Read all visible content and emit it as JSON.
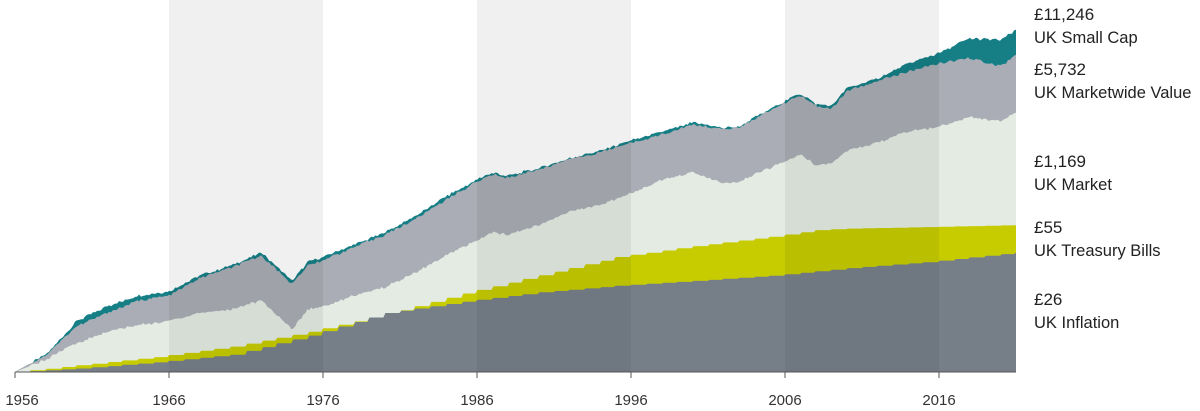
{
  "chart_data": {
    "type": "area",
    "x_ticks": [
      "1956",
      "1966",
      "1976",
      "1986",
      "1996",
      "2006",
      "2016"
    ],
    "xlim": [
      1956,
      2021
    ],
    "series": [
      {
        "name": "UK Small Cap",
        "ending_value": "£11,246",
        "color": "#167f86",
        "x": [
          1956,
          1958,
          1960,
          1962,
          1964,
          1966,
          1968,
          1970,
          1972,
          1974,
          1975,
          1976,
          1978,
          1980,
          1982,
          1984,
          1986,
          1987,
          1988,
          1990,
          1992,
          1994,
          1996,
          1998,
          2000,
          2002,
          2003,
          2005,
          2007,
          2008,
          2009,
          2010,
          2012,
          2014,
          2016,
          2018,
          2020,
          2021
        ],
        "values": [
          1,
          1.6,
          4,
          6,
          8,
          9,
          14,
          18,
          26,
          12,
          20,
          23,
          32,
          45,
          70,
          120,
          190,
          230,
          210,
          260,
          340,
          420,
          550,
          700,
          900,
          780,
          800,
          1300,
          2000,
          1500,
          1400,
          2300,
          3000,
          4500,
          6000,
          9000,
          8500,
          11246
        ]
      },
      {
        "name": "UK Marketwide Value",
        "ending_value": "£5,732",
        "color": "#aaadb5",
        "x": [
          1956,
          1958,
          1960,
          1962,
          1964,
          1966,
          1968,
          1970,
          1972,
          1974,
          1975,
          1976,
          1978,
          1980,
          1982,
          1984,
          1986,
          1987,
          1988,
          1990,
          1992,
          1994,
          1996,
          1998,
          2000,
          2002,
          2003,
          2005,
          2007,
          2008,
          2009,
          2010,
          2012,
          2014,
          2016,
          2018,
          2020,
          2021
        ],
        "values": [
          1,
          1.6,
          3.5,
          5,
          7,
          8,
          13,
          17,
          24,
          11,
          18,
          21,
          30,
          42,
          65,
          110,
          180,
          220,
          200,
          250,
          330,
          400,
          520,
          650,
          850,
          750,
          780,
          1250,
          1900,
          1400,
          1300,
          2100,
          2800,
          3600,
          4500,
          5200,
          4200,
          5732
        ]
      },
      {
        "name": "UK Market",
        "ending_value": "£1,169",
        "color": "#e4ebe3",
        "x": [
          1956,
          1958,
          1960,
          1962,
          1964,
          1966,
          1968,
          1970,
          1972,
          1974,
          1975,
          1976,
          1978,
          1980,
          1982,
          1984,
          1986,
          1987,
          1988,
          1990,
          1992,
          1994,
          1996,
          1998,
          2000,
          2002,
          2003,
          2005,
          2007,
          2008,
          2009,
          2010,
          2012,
          2014,
          2016,
          2018,
          2020,
          2021
        ],
        "values": [
          1,
          1.4,
          2.2,
          3,
          3.6,
          4,
          5,
          5.5,
          7,
          3.2,
          5.5,
          6,
          8,
          10,
          15,
          24,
          36,
          45,
          42,
          55,
          80,
          95,
          130,
          190,
          230,
          170,
          180,
          260,
          380,
          280,
          300,
          420,
          520,
          700,
          800,
          1050,
          950,
          1169
        ]
      },
      {
        "name": "UK Treasury Bills",
        "ending_value": "£55",
        "color": "#c6cc00",
        "x": [
          1956,
          1960,
          1965,
          1970,
          1975,
          1980,
          1985,
          1990,
          1995,
          2000,
          2005,
          2008,
          2010,
          2015,
          2021
        ],
        "values": [
          1,
          1.2,
          1.5,
          2,
          3,
          4.8,
          8.5,
          14,
          23,
          31,
          40,
          48,
          50,
          52,
          55
        ]
      },
      {
        "name": "UK Inflation",
        "ending_value": "£26",
        "color": "#767f88",
        "x": [
          1956,
          1960,
          1965,
          1970,
          1975,
          1980,
          1985,
          1990,
          1995,
          2000,
          2005,
          2010,
          2015,
          2021
        ],
        "values": [
          1,
          1.1,
          1.3,
          1.6,
          2.7,
          5,
          6.8,
          8.8,
          10.5,
          12,
          13.8,
          17,
          20,
          26
        ]
      }
    ],
    "shaded_bands": "alternating by decade",
    "legend_placement": "right"
  }
}
